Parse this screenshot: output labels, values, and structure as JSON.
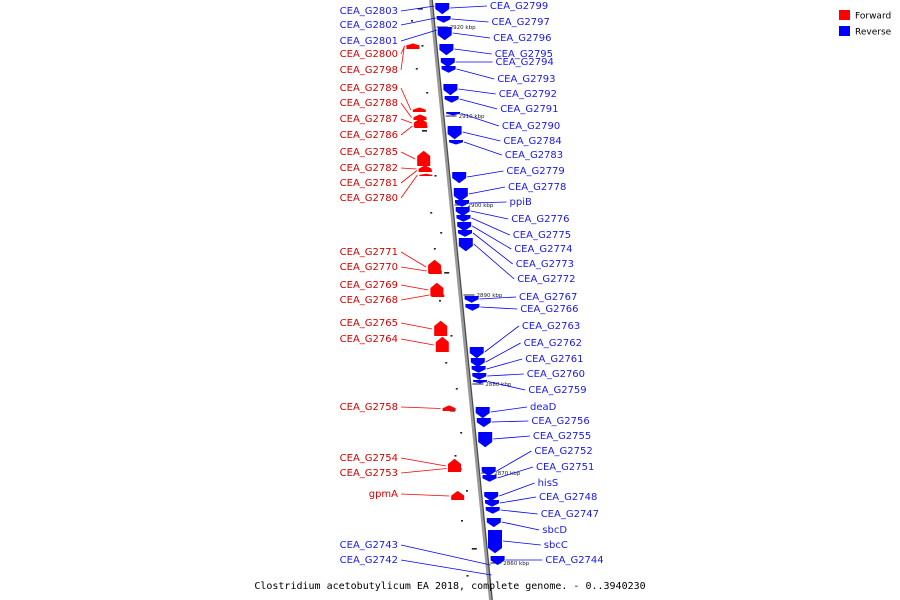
{
  "caption": "Clostridium acetobutylicum EA 2018, complete genome. - 0..3940230",
  "legend": [
    {
      "label": "Forward",
      "color": "#ff0000"
    },
    {
      "label": "Reverse",
      "color": "#0000ff"
    }
  ],
  "ticks": [
    "2920 kbp",
    "2910 kbp",
    "2900 kbp",
    "2890 kbp",
    "2880 kbp",
    "2870 kbp",
    "2860 kbp"
  ],
  "forward_labels": [
    "CEA_G2800",
    "CEA_G2798",
    "CEA_G2789",
    "CEA_G2788",
    "CEA_G2787",
    "CEA_G2786",
    "CEA_G2785",
    "CEA_G2782",
    "CEA_G2781",
    "CEA_G2780",
    "CEA_G2771",
    "CEA_G2770",
    "CEA_G2769",
    "CEA_G2768",
    "CEA_G2765",
    "CEA_G2764",
    "CEA_G2758",
    "CEA_G2754",
    "CEA_G2753",
    "gpmA"
  ],
  "reverse_left_labels": [
    "CEA_G2803",
    "CEA_G2802",
    "CEA_G2801",
    "CEA_G2743",
    "CEA_G2742"
  ],
  "reverse_right_labels": [
    "CEA_G2799",
    "CEA_G2797",
    "CEA_G2796",
    "CEA_G2795",
    "CEA_G2794",
    "CEA_G2793",
    "CEA_G2792",
    "CEA_G2791",
    "CEA_G2790",
    "CEA_G2784",
    "CEA_G2783",
    "CEA_G2779",
    "CEA_G2778",
    "ppiB",
    "CEA_G2776",
    "CEA_G2775",
    "CEA_G2774",
    "CEA_G2773",
    "CEA_G2772",
    "CEA_G2767",
    "CEA_G2766",
    "CEA_G2763",
    "CEA_G2762",
    "CEA_G2761",
    "CEA_G2760",
    "CEA_G2759",
    "deaD",
    "CEA_G2756",
    "CEA_G2755",
    "CEA_G2752",
    "CEA_G2751",
    "hisS",
    "CEA_G2748",
    "CEA_G2747",
    "sbcD",
    "sbcC",
    "CEA_G2744"
  ]
}
